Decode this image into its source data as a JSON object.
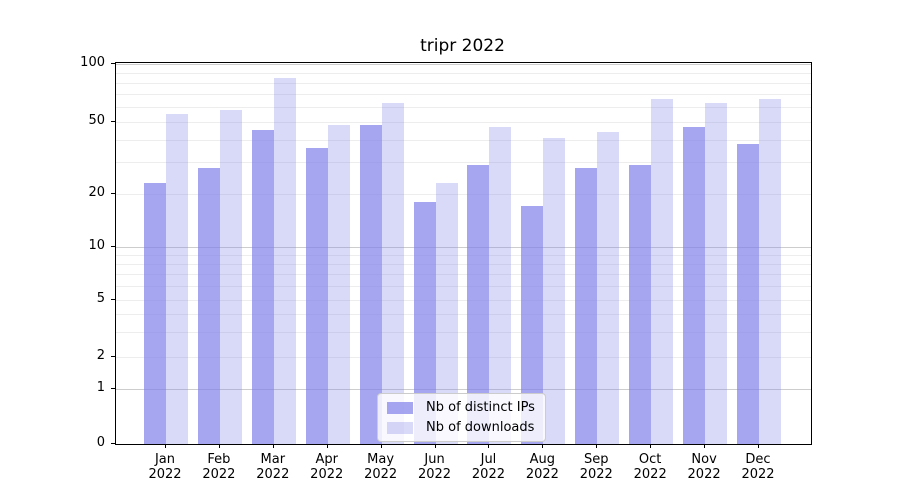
{
  "title": "tripr 2022",
  "chart_data": {
    "type": "bar",
    "categories": [
      "Jan",
      "Feb",
      "Mar",
      "Apr",
      "May",
      "Jun",
      "Jul",
      "Aug",
      "Sep",
      "Oct",
      "Nov",
      "Dec"
    ],
    "x_year_label": "2022",
    "series": [
      {
        "name": "Nb of distinct IPs",
        "color": "rgba(128,128,233,0.7)",
        "values": [
          23,
          28,
          45,
          36,
          48,
          18,
          29,
          17,
          28,
          29,
          47,
          38
        ]
      },
      {
        "name": "Nb of downloads",
        "color": "rgba(128,128,233,0.3)",
        "values": [
          55,
          58,
          85,
          48,
          63,
          23,
          47,
          41,
          44,
          66,
          63,
          66
        ]
      }
    ],
    "title": "tripr 2022",
    "xlabel": "",
    "ylabel": "",
    "yscale": "symlog",
    "ylim": [
      0,
      100
    ],
    "y_tick_values": [
      100,
      50,
      20,
      10,
      5,
      2,
      1,
      0
    ],
    "y_tick_labels": [
      "100",
      "50",
      "20",
      "10",
      "5",
      "2",
      "1",
      "0"
    ],
    "y_major_gridlines": [
      1,
      10,
      100
    ],
    "y_minor_gridlines": [
      2,
      3,
      4,
      5,
      6,
      7,
      8,
      9,
      20,
      30,
      40,
      50,
      60,
      70,
      80,
      90
    ],
    "grid": true,
    "legend_position": "lower center"
  },
  "colors": {
    "bar_distinct_ips": "rgba(128,128,233,0.7)",
    "bar_downloads": "rgba(128,128,233,0.3)",
    "grid_minor": "#ededed",
    "grid_major": "#cdcdcd",
    "spine": "#000000",
    "legend_border": "#cccccc"
  }
}
